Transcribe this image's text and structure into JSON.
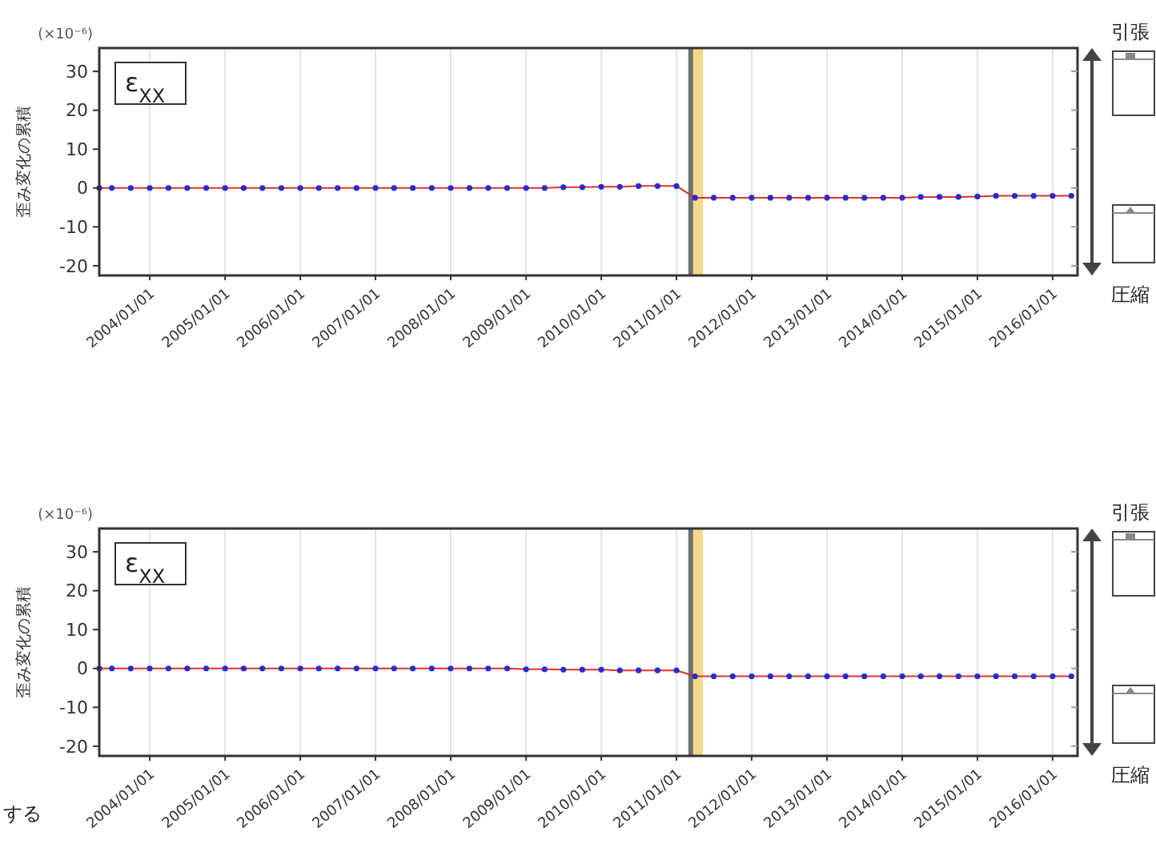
{
  "chart_data": [
    {
      "type": "line",
      "ylabel": "歪み変化の累積",
      "annotations": [
        "(×10⁻⁶)",
        "ε$_{XX}$",
        "引張",
        "圧縮"
      ],
      "marker": "circle",
      "grid": "x",
      "xlim": [
        "2003-05-01",
        "2016-05-01"
      ],
      "ylim": [
        -22.5,
        36
      ],
      "yticks": [
        30,
        20,
        10,
        0,
        -10,
        -20
      ],
      "xticks": [
        {
          "value": "2004-01-01",
          "label": "2004/01/01"
        },
        {
          "value": "2005-01-01",
          "label": "2005/01/01"
        },
        {
          "value": "2006-01-01",
          "label": "2006/01/01"
        },
        {
          "value": "2007-01-01",
          "label": "2007/01/01"
        },
        {
          "value": "2008-01-01",
          "label": "2008/01/01"
        },
        {
          "value": "2009-01-01",
          "label": "2009/01/01"
        },
        {
          "value": "2010-01-01",
          "label": "2010/01/01"
        },
        {
          "value": "2011-01-01",
          "label": "2011/01/01"
        },
        {
          "value": "2012-01-01",
          "label": "2012/01/01"
        },
        {
          "value": "2013-01-01",
          "label": "2013/01/01"
        },
        {
          "value": "2014-01-01",
          "label": "2014/01/01"
        },
        {
          "value": "2015-01-01",
          "label": "2015/01/01"
        },
        {
          "value": "2016-01-01",
          "label": "2016/01/01"
        }
      ],
      "x": [
        "2003-05",
        "2003-07",
        "2003-10",
        "2004-01",
        "2004-04",
        "2004-07",
        "2004-10",
        "2005-01",
        "2005-04",
        "2005-07",
        "2005-10",
        "2006-01",
        "2006-04",
        "2006-07",
        "2006-10",
        "2007-01",
        "2007-04",
        "2007-07",
        "2007-10",
        "2008-01",
        "2008-04",
        "2008-07",
        "2008-10",
        "2009-01",
        "2009-04",
        "2009-07",
        "2009-10",
        "2010-01",
        "2010-04",
        "2010-07",
        "2010-10",
        "2011-01",
        "2011-04",
        "2011-07",
        "2011-10",
        "2012-01",
        "2012-04",
        "2012-07",
        "2012-10",
        "2013-01",
        "2013-04",
        "2013-07",
        "2013-10",
        "2014-01",
        "2014-04",
        "2014-07",
        "2014-10",
        "2015-01",
        "2015-04",
        "2015-07",
        "2015-10",
        "2016-01",
        "2016-04"
      ],
      "series": [
        {
          "color": "#2a2ad0",
          "values": [
            0,
            0,
            0,
            0,
            0,
            0,
            0,
            0,
            0,
            0,
            0,
            0,
            0,
            0,
            0,
            0,
            0,
            0,
            0,
            0,
            0,
            0,
            0,
            0,
            0,
            0.2,
            0.2,
            0.3,
            0.3,
            0.5,
            0.5,
            0.5,
            -2.5,
            -2.5,
            -2.5,
            -2.5,
            -2.5,
            -2.5,
            -2.5,
            -2.5,
            -2.5,
            -2.5,
            -2.5,
            -2.5,
            -2.3,
            -2.3,
            -2.3,
            -2.2,
            -2,
            -2,
            -2,
            -2,
            -2
          ]
        }
      ],
      "ref_lines": [
        {
          "axis": "x",
          "value": "2011-03-11",
          "color": "#707070"
        }
      ],
      "bands": [
        {
          "axis": "x",
          "from": "2011-03-11",
          "to": "2011-05-10",
          "color": "#f5d98a"
        }
      ]
    },
    {
      "type": "line",
      "ylabel": "歪み変化の累積",
      "annotations": [
        "(×10⁻⁶)",
        "ε$_{XX}$",
        "引張",
        "圧縮",
        "する"
      ],
      "marker": "circle",
      "grid": "x",
      "xlim": [
        "2003-05-01",
        "2016-05-01"
      ],
      "ylim": [
        -22.5,
        36
      ],
      "yticks": [
        30,
        20,
        10,
        0,
        -10,
        -20
      ],
      "xticks": [
        {
          "value": "2004-01-01",
          "label": "2004/01/01"
        },
        {
          "value": "2005-01-01",
          "label": "2005/01/01"
        },
        {
          "value": "2006-01-01",
          "label": "2006/01/01"
        },
        {
          "value": "2007-01-01",
          "label": "2007/01/01"
        },
        {
          "value": "2008-01-01",
          "label": "2008/01/01"
        },
        {
          "value": "2009-01-01",
          "label": "2009/01/01"
        },
        {
          "value": "2010-01-01",
          "label": "2010/01/01"
        },
        {
          "value": "2011-01-01",
          "label": "2011/01/01"
        },
        {
          "value": "2012-01-01",
          "label": "2012/01/01"
        },
        {
          "value": "2013-01-01",
          "label": "2013/01/01"
        },
        {
          "value": "2014-01-01",
          "label": "2014/01/01"
        },
        {
          "value": "2015-01-01",
          "label": "2015/01/01"
        },
        {
          "value": "2016-01-01",
          "label": "2016/01/01"
        }
      ],
      "x": [
        "2003-05",
        "2003-07",
        "2003-10",
        "2004-01",
        "2004-04",
        "2004-07",
        "2004-10",
        "2005-01",
        "2005-04",
        "2005-07",
        "2005-10",
        "2006-01",
        "2006-04",
        "2006-07",
        "2006-10",
        "2007-01",
        "2007-04",
        "2007-07",
        "2007-10",
        "2008-01",
        "2008-04",
        "2008-07",
        "2008-10",
        "2009-01",
        "2009-04",
        "2009-07",
        "2009-10",
        "2010-01",
        "2010-04",
        "2010-07",
        "2010-10",
        "2011-01",
        "2011-04",
        "2011-07",
        "2011-10",
        "2012-01",
        "2012-04",
        "2012-07",
        "2012-10",
        "2013-01",
        "2013-04",
        "2013-07",
        "2013-10",
        "2014-01",
        "2014-04",
        "2014-07",
        "2014-10",
        "2015-01",
        "2015-04",
        "2015-07",
        "2015-10",
        "2016-01",
        "2016-04"
      ],
      "series": [
        {
          "color": "#2a2ad0",
          "values": [
            0,
            0,
            0,
            0,
            0,
            0,
            0,
            0,
            0,
            0,
            0,
            0,
            0,
            0,
            0,
            0,
            0,
            0,
            0,
            0,
            0,
            0,
            0,
            -0.2,
            -0.2,
            -0.3,
            -0.3,
            -0.3,
            -0.5,
            -0.5,
            -0.5,
            -0.5,
            -2,
            -2,
            -2,
            -2,
            -2,
            -2,
            -2,
            -2,
            -2,
            -2,
            -2,
            -2,
            -2,
            -2,
            -2,
            -2,
            -2,
            -2,
            -2,
            -2,
            -2
          ]
        }
      ],
      "ref_lines": [
        {
          "axis": "x",
          "value": "2011-03-11",
          "color": "#707070"
        }
      ],
      "bands": [
        {
          "axis": "x",
          "from": "2011-03-11",
          "to": "2011-05-10",
          "color": "#f5d98a"
        }
      ]
    }
  ]
}
